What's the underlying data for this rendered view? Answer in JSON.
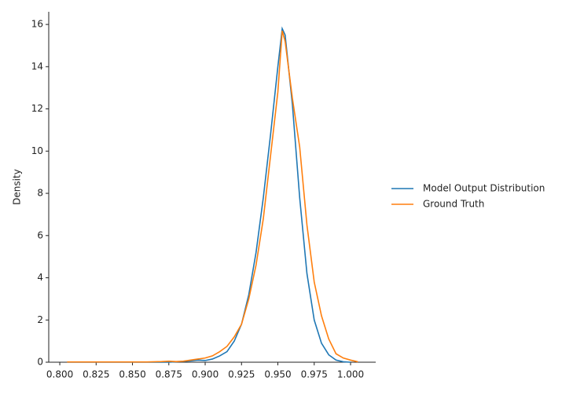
{
  "chart_data": {
    "type": "line",
    "y_label": "Density",
    "x": [
      0.805,
      0.81,
      0.815,
      0.82,
      0.825,
      0.83,
      0.835,
      0.84,
      0.845,
      0.85,
      0.855,
      0.86,
      0.865,
      0.87,
      0.875,
      0.88,
      0.885,
      0.89,
      0.895,
      0.9,
      0.905,
      0.91,
      0.915,
      0.92,
      0.925,
      0.93,
      0.935,
      0.94,
      0.945,
      0.95,
      0.953,
      0.955,
      0.96,
      0.965,
      0.97,
      0.975,
      0.98,
      0.985,
      0.99,
      0.995,
      1.0,
      1.005
    ],
    "series": [
      {
        "name": "Model Output Distribution",
        "color": "#1f77b4",
        "values": [
          0,
          0,
          0,
          0,
          0,
          0,
          0,
          0,
          0,
          0,
          0,
          0,
          0,
          0,
          0,
          0.02,
          0.04,
          0.06,
          0.1,
          0.08,
          0.15,
          0.3,
          0.5,
          1.0,
          1.8,
          3.2,
          5.2,
          7.8,
          10.8,
          14.0,
          15.8,
          15.5,
          12.2,
          7.8,
          4.2,
          2.0,
          0.9,
          0.35,
          0.1,
          0.02,
          0,
          null
        ]
      },
      {
        "name": "Ground Truth",
        "color": "#ff7f0e",
        "values": [
          0.01,
          0.01,
          0.01,
          0.01,
          0.01,
          0.01,
          0.01,
          0.01,
          0.01,
          0.01,
          0.01,
          0.01,
          0.02,
          0.03,
          0.05,
          0.03,
          0.05,
          0.1,
          0.15,
          0.2,
          0.3,
          0.5,
          0.75,
          1.2,
          1.8,
          3.0,
          4.6,
          6.8,
          9.8,
          12.8,
          15.7,
          15.2,
          12.5,
          10.2,
          6.5,
          3.8,
          2.2,
          1.1,
          0.4,
          0.2,
          0.1,
          0.02
        ]
      }
    ],
    "xlim": [
      0.7924,
      1.0173
    ],
    "ylim": [
      0,
      16.6
    ],
    "xticks": [
      {
        "value": 0.8,
        "label": "0.800"
      },
      0.825,
      {
        "value": 0.85,
        "label": "0.850"
      },
      0.875,
      {
        "value": 0.9,
        "label": "0.900"
      },
      0.925,
      {
        "value": 0.95,
        "label": "0.950"
      },
      0.975,
      {
        "value": 1.0,
        "label": "1.000"
      }
    ],
    "yticks": [
      0,
      2,
      4,
      6,
      8,
      10,
      12,
      14,
      16
    ],
    "legend": "right"
  }
}
